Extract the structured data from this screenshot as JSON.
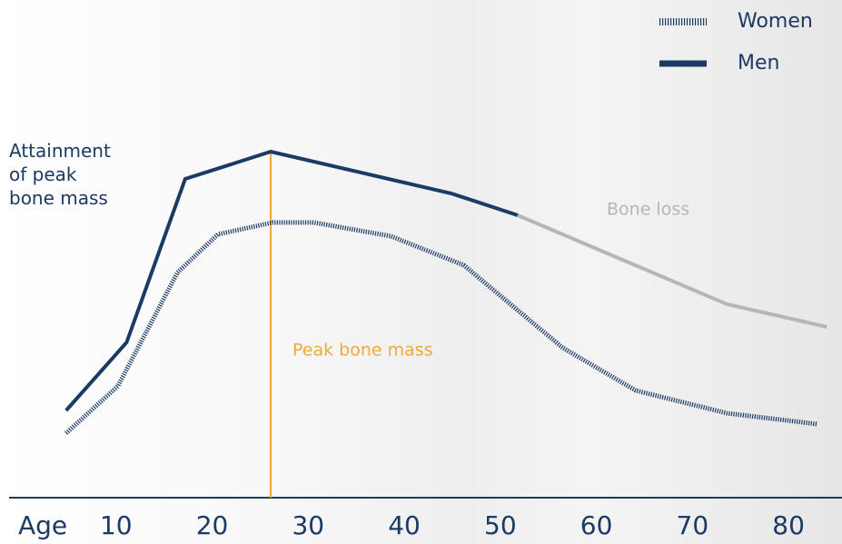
{
  "chart_data": {
    "type": "line",
    "x_label": "Age",
    "xlim": [
      0,
      85
    ],
    "xticks": [
      10,
      20,
      30,
      40,
      50,
      60,
      70,
      80
    ],
    "ylim": [
      0,
      100
    ],
    "legend": "top-right",
    "series": [
      {
        "name": "Women",
        "color": "#1b3a64",
        "style": "hatched",
        "x": [
          4.8,
          10.2,
          16.4,
          20.6,
          26.3,
          30.6,
          38.6,
          46.2,
          56.5,
          64.1,
          73.6,
          83
        ],
        "values": [
          14.2,
          24.6,
          49.6,
          58,
          60.6,
          60.6,
          57.6,
          51.2,
          33,
          23.6,
          18.6,
          16.2
        ]
      },
      {
        "name": "Men",
        "color": "#1b3a64",
        "style": "solid",
        "x": [
          4.8,
          11.1,
          17.2,
          26.1,
          44.9,
          51.8
        ],
        "values": [
          19.2,
          34.2,
          70.2,
          76.2,
          67,
          62.2
        ]
      }
    ],
    "bone_loss": {
      "label": "Bone loss",
      "color": "#b5b6ba",
      "x": [
        51.8,
        73.6,
        84
      ],
      "values": [
        62.2,
        42.6,
        37.6
      ]
    },
    "peak": {
      "label": "Peak bone mass",
      "x": 26.1,
      "color": "#f2a93b"
    },
    "attainment_label": "Attainment of peak bone mass"
  }
}
